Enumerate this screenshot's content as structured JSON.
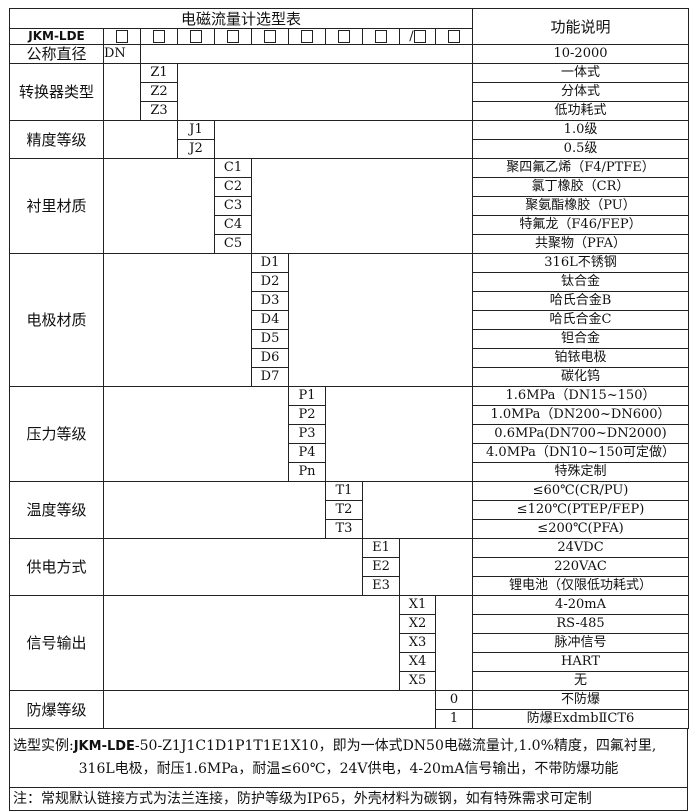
{
  "title": "电磁流量计选型表",
  "function_header": "功能说明",
  "model": "JKM-LDE",
  "slot_symbols": [
    "□",
    "□",
    "□",
    "□",
    "□",
    "□",
    "□",
    "□",
    "/□",
    "□"
  ],
  "diameter": {
    "label": "公称直径",
    "code": "DN",
    "function": "10-2000"
  },
  "sections": [
    {
      "label": "转换器类型",
      "column": 2,
      "rows": [
        {
          "code": "Z1",
          "function": "一体式"
        },
        {
          "code": "Z2",
          "function": "分体式"
        },
        {
          "code": "Z3",
          "function": "低功耗式"
        }
      ]
    },
    {
      "label": "精度等级",
      "column": 3,
      "rows": [
        {
          "code": "J1",
          "function": "1.0级"
        },
        {
          "code": "J2",
          "function": "0.5级"
        }
      ]
    },
    {
      "label": "衬里材质",
      "column": 4,
      "rows": [
        {
          "code": "C1",
          "function": "聚四氟乙烯（F4/PTFE）"
        },
        {
          "code": "C2",
          "function": "氯丁橡胶（CR）"
        },
        {
          "code": "C3",
          "function": "聚氨酯橡胶（PU）"
        },
        {
          "code": "C4",
          "function": "特氟龙（F46/FEP）"
        },
        {
          "code": "C5",
          "function": "共聚物（PFA）"
        }
      ]
    },
    {
      "label": "电极材质",
      "column": 5,
      "rows": [
        {
          "code": "D1",
          "function": "316L不锈钢"
        },
        {
          "code": "D2",
          "function": "钛合金"
        },
        {
          "code": "D3",
          "function": "哈氏合金B"
        },
        {
          "code": "D4",
          "function": "哈氏合金C"
        },
        {
          "code": "D5",
          "function": "钽合金"
        },
        {
          "code": "D6",
          "function": "铂铱电极"
        },
        {
          "code": "D7",
          "function": "碳化钨"
        }
      ]
    },
    {
      "label": "压力等级",
      "column": 6,
      "rows": [
        {
          "code": "P1",
          "function": "1.6MPa（DN15~150）"
        },
        {
          "code": "P2",
          "function": "1.0MPa（DN200~DN600）"
        },
        {
          "code": "P3",
          "function": "0.6MPa(DN700~DN2000)"
        },
        {
          "code": "P4",
          "function": "4.0MPa（DN10~150可定做）"
        },
        {
          "code": "Pn",
          "function": "特殊定制"
        }
      ]
    },
    {
      "label": "温度等级",
      "column": 7,
      "rows": [
        {
          "code": "T1",
          "function": "≤60℃(CR/PU)"
        },
        {
          "code": "T2",
          "function": "≤120℃(PTEP/FEP)"
        },
        {
          "code": "T3",
          "function": "≤200℃(PFA)"
        }
      ]
    },
    {
      "label": "供电方式",
      "column": 8,
      "rows": [
        {
          "code": "E1",
          "function": "24VDC"
        },
        {
          "code": "E2",
          "function": "220VAC"
        },
        {
          "code": "E3",
          "function": "锂电池（仅限低功耗式）"
        }
      ]
    },
    {
      "label": "信号输出",
      "column": 9,
      "rows": [
        {
          "code": "X1",
          "function": "4-20mA"
        },
        {
          "code": "X2",
          "function": "RS-485"
        },
        {
          "code": "X3",
          "function": "脉冲信号"
        },
        {
          "code": "X4",
          "function": "HART"
        },
        {
          "code": "X5",
          "function": "无"
        }
      ]
    },
    {
      "label": "防爆等级",
      "column": 10,
      "rows": [
        {
          "code": "0",
          "function": "不防爆"
        },
        {
          "code": "1",
          "function": "防爆ExdmbⅡCT6"
        }
      ]
    }
  ],
  "example": {
    "prefix": "选型实例:",
    "model": "JKM-LDE",
    "code_rest": "-50-Z1J1C1D1P1T1E1X10，即为一体式DN50电磁流量计,1.0%精度，四氟衬里,",
    "line2": "316L电极，耐压1.6MPa，耐温≤60℃，24V供电，4-20mA信号输出，不带防爆功能"
  },
  "note": "注：常规默认链接方式为法兰连接，防护等级为IP65，外壳材料为碳钢，如有特殊需求可定制"
}
